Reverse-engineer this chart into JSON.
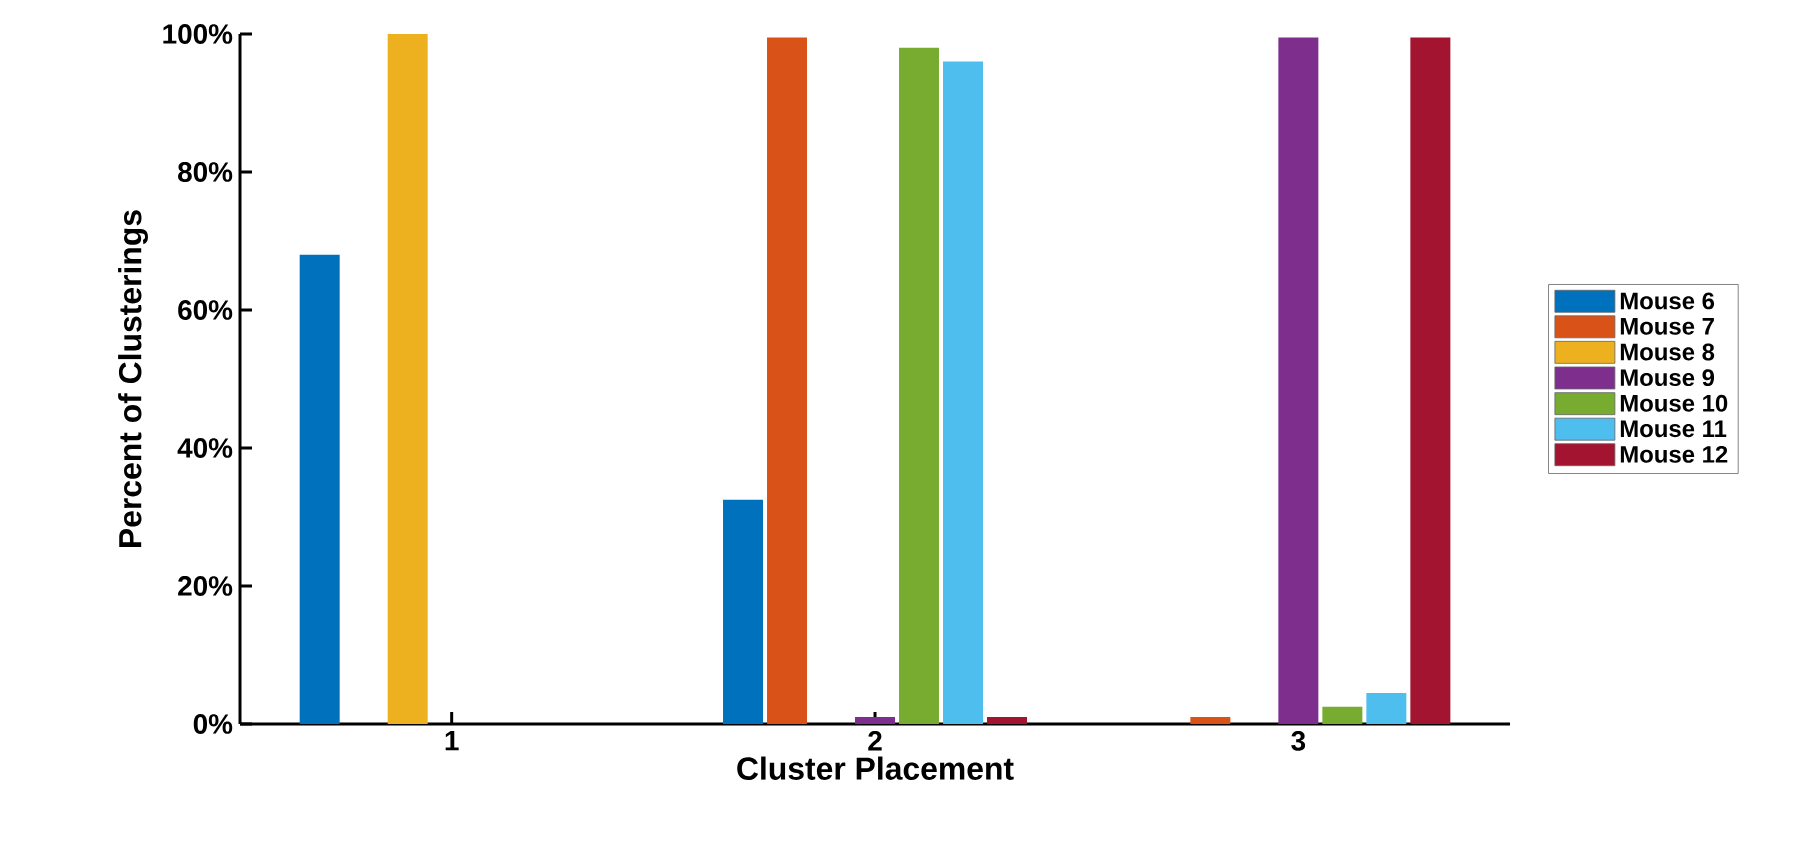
{
  "chart_data": {
    "type": "bar",
    "xlabel": "Cluster Placement",
    "ylabel": "Percent of Clusterings",
    "categories": [
      "1",
      "2",
      "3"
    ],
    "series": [
      {
        "name": "Mouse 6",
        "color": "#0072bd",
        "values": [
          68,
          32.5,
          0
        ]
      },
      {
        "name": "Mouse 7",
        "color": "#d95319",
        "values": [
          0,
          99.5,
          1
        ]
      },
      {
        "name": "Mouse 8",
        "color": "#edb120",
        "values": [
          100,
          0,
          0
        ]
      },
      {
        "name": "Mouse 9",
        "color": "#7e2f8e",
        "values": [
          0,
          1,
          99.5
        ]
      },
      {
        "name": "Mouse 10",
        "color": "#77ac30",
        "values": [
          0,
          98,
          2.5
        ]
      },
      {
        "name": "Mouse 11",
        "color": "#4dbeee",
        "values": [
          0,
          96,
          4.5
        ]
      },
      {
        "name": "Mouse 12",
        "color": "#a2142f",
        "values": [
          0,
          1,
          99.5
        ]
      }
    ],
    "ylim": [
      0,
      100
    ],
    "yticks": [
      {
        "value": 0,
        "label": "0%"
      },
      {
        "value": 20,
        "label": "20%"
      },
      {
        "value": 40,
        "label": "40%"
      },
      {
        "value": 60,
        "label": "60%"
      },
      {
        "value": 80,
        "label": "80%"
      },
      {
        "value": 100,
        "label": "100%"
      }
    ],
    "grid": false,
    "legend": "right"
  }
}
